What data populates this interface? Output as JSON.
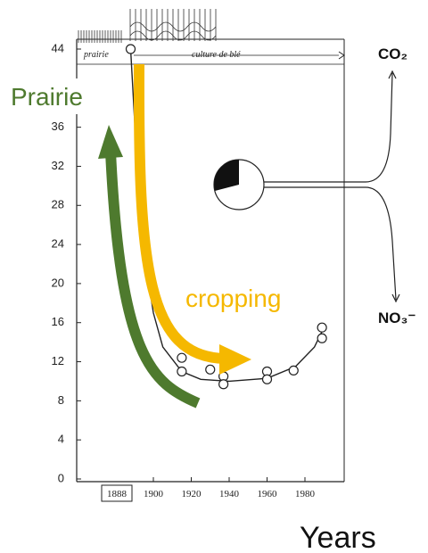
{
  "chart_data": {
    "type": "scatter",
    "x": [
      1888,
      1915,
      1915,
      1930,
      1937,
      1937,
      1960,
      1960,
      1974,
      1989,
      1989
    ],
    "values": [
      44,
      12.4,
      11,
      11.2,
      10.5,
      9.7,
      11,
      10.2,
      11.1,
      15.5,
      14.4
    ],
    "curve": {
      "x": [
        1888,
        1890,
        1892,
        1894,
        1896,
        1900,
        1905,
        1915,
        1925,
        1940,
        1960,
        1975,
        1985,
        1990
      ],
      "values": [
        44,
        37,
        31,
        26,
        22,
        17,
        13.5,
        11,
        10.2,
        10,
        10.3,
        11.5,
        13.5,
        15.5
      ]
    },
    "color": "#222222",
    "xlim": [
      1878,
      1995
    ],
    "ylim": [
      0,
      44
    ],
    "yticks": [
      0,
      4,
      8,
      12,
      16,
      20,
      24,
      28,
      32,
      36,
      44
    ],
    "xticks": [
      1888,
      1900,
      1920,
      1940,
      1960,
      1980
    ],
    "annotations": {
      "prairie_band": "prairie",
      "crop_band": "culture de blé",
      "prairie": "Prairie",
      "cropping": "cropping",
      "co2": "CO₂",
      "no3": "NO₃⁻",
      "x_label": "Years"
    }
  }
}
